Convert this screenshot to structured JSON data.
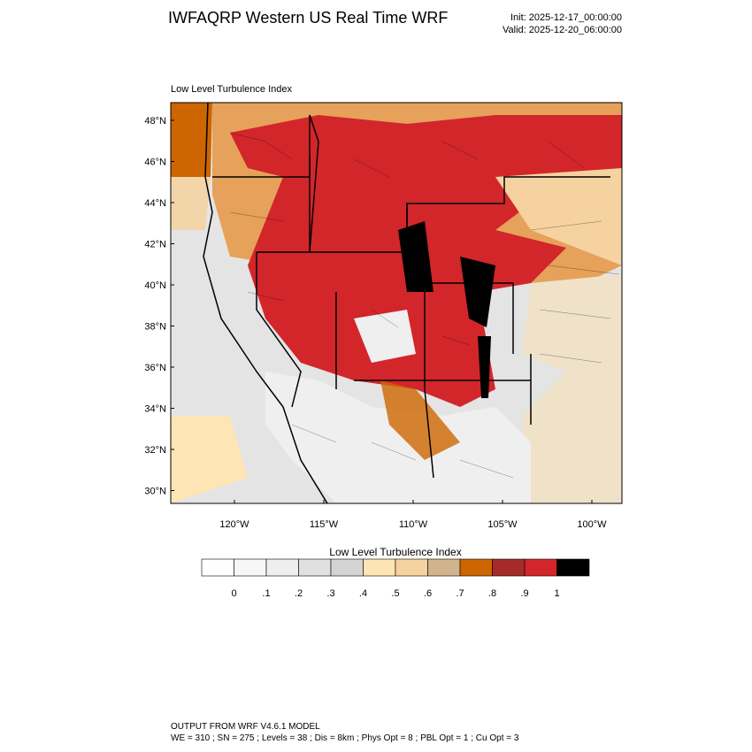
{
  "header": {
    "title": "IWFAQRP Western US Real Time WRF",
    "init": "Init: 2025-12-17_00:00:00",
    "valid": "Valid: 2025-12-20_06:00:00"
  },
  "map": {
    "label": "Low Level Turbulence Index",
    "lat_labels": [
      "48°N",
      "46°N",
      "44°N",
      "42°N",
      "40°N",
      "38°N",
      "36°N",
      "34°N",
      "32°N",
      "30°N"
    ],
    "lon_labels": [
      "120°W",
      "115°W",
      "110°W",
      "105°W",
      "100°W"
    ]
  },
  "colorbar": {
    "title": "Low Level Turbulence Index",
    "labels": [
      "0",
      ".1",
      ".2",
      ".3",
      ".4",
      ".5",
      ".6",
      ".7",
      ".8",
      ".9",
      "1"
    ],
    "colors": [
      "#ffffff",
      "#f7f7f7",
      "#eeeeee",
      "#e0e0e0",
      "#d4d4d4",
      "#ffe4b5",
      "#f5d2a0",
      "#d2b48c",
      "#cd6600",
      "#a52a2a",
      "#d2262b",
      "#000000"
    ]
  },
  "footer": {
    "line1": "OUTPUT FROM WRF V4.6.1 MODEL",
    "line2": "WE = 310 ; SN = 275 ; Levels = 38 ; Dis = 8km ; Phys Opt = 8 ; PBL Opt = 1 ; Cu Opt = 3"
  }
}
